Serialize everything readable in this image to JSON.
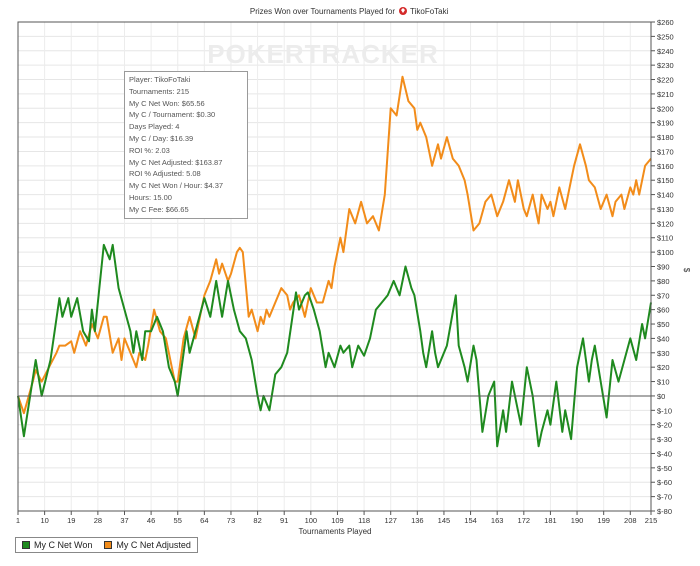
{
  "watermark": "POKERTRACKER",
  "chart_data": {
    "type": "line",
    "title_prefix": "Prizes Won over Tournaments Played for",
    "title_player": "TikoFoTaki",
    "xlabel": "Tournaments Played",
    "ylabel": "$",
    "xlim": [
      1,
      215
    ],
    "ylim": [
      -80,
      260
    ],
    "x_ticks": [
      1,
      10,
      19,
      28,
      37,
      46,
      55,
      64,
      73,
      82,
      91,
      100,
      109,
      118,
      127,
      136,
      145,
      154,
      163,
      172,
      181,
      190,
      199,
      208,
      215
    ],
    "y_ticks": [
      260,
      250,
      240,
      230,
      220,
      210,
      200,
      190,
      180,
      170,
      160,
      150,
      140,
      130,
      120,
      110,
      100,
      90,
      80,
      70,
      60,
      50,
      40,
      30,
      20,
      10,
      0,
      -10,
      -20,
      -30,
      -40,
      -50,
      -60,
      -70,
      -80
    ],
    "y_tick_labels": [
      "$260",
      "$250",
      "$240",
      "$230",
      "$220",
      "$210",
      "$200",
      "$190",
      "$180",
      "$170",
      "$160",
      "$150",
      "$140",
      "$130",
      "$120",
      "$110",
      "$100",
      "$90",
      "$80",
      "$70",
      "$60",
      "$50",
      "$40",
      "$30",
      "$20",
      "$10",
      "$0",
      "$-10",
      "$-20",
      "$-30",
      "$-40",
      "$-50",
      "$-60",
      "$-70",
      "$-80"
    ],
    "series": [
      {
        "name": "My C Net Won",
        "color": "#1f8a1f",
        "points": [
          [
            1,
            0
          ],
          [
            3,
            -28
          ],
          [
            7,
            25
          ],
          [
            9,
            0
          ],
          [
            12,
            25
          ],
          [
            15,
            68
          ],
          [
            16,
            55
          ],
          [
            18,
            68
          ],
          [
            19,
            55
          ],
          [
            21,
            68
          ],
          [
            23,
            45
          ],
          [
            25,
            38
          ],
          [
            26,
            60
          ],
          [
            27,
            45
          ],
          [
            30,
            105
          ],
          [
            32,
            95
          ],
          [
            33,
            105
          ],
          [
            35,
            75
          ],
          [
            37,
            60
          ],
          [
            39,
            45
          ],
          [
            40,
            30
          ],
          [
            41,
            45
          ],
          [
            43,
            25
          ],
          [
            44,
            45
          ],
          [
            46,
            45
          ],
          [
            48,
            55
          ],
          [
            50,
            45
          ],
          [
            52,
            20
          ],
          [
            54,
            10
          ],
          [
            55,
            0
          ],
          [
            58,
            45
          ],
          [
            59,
            30
          ],
          [
            61,
            45
          ],
          [
            64,
            68
          ],
          [
            66,
            55
          ],
          [
            68,
            80
          ],
          [
            70,
            55
          ],
          [
            72,
            80
          ],
          [
            74,
            60
          ],
          [
            76,
            45
          ],
          [
            78,
            40
          ],
          [
            80,
            25
          ],
          [
            82,
            0
          ],
          [
            83,
            -10
          ],
          [
            84,
            0
          ],
          [
            86,
            -10
          ],
          [
            88,
            15
          ],
          [
            90,
            20
          ],
          [
            92,
            30
          ],
          [
            95,
            72
          ],
          [
            96,
            60
          ],
          [
            98,
            70
          ],
          [
            99,
            72
          ],
          [
            101,
            60
          ],
          [
            103,
            45
          ],
          [
            105,
            20
          ],
          [
            106,
            30
          ],
          [
            108,
            20
          ],
          [
            110,
            35
          ],
          [
            111,
            30
          ],
          [
            113,
            35
          ],
          [
            114,
            20
          ],
          [
            116,
            35
          ],
          [
            118,
            28
          ],
          [
            120,
            40
          ],
          [
            122,
            60
          ],
          [
            124,
            65
          ],
          [
            126,
            70
          ],
          [
            128,
            80
          ],
          [
            130,
            70
          ],
          [
            132,
            90
          ],
          [
            134,
            75
          ],
          [
            135,
            70
          ],
          [
            137,
            45
          ],
          [
            138,
            30
          ],
          [
            139,
            20
          ],
          [
            141,
            45
          ],
          [
            142,
            30
          ],
          [
            143,
            20
          ],
          [
            146,
            35
          ],
          [
            149,
            70
          ],
          [
            150,
            35
          ],
          [
            152,
            20
          ],
          [
            153,
            10
          ],
          [
            155,
            35
          ],
          [
            156,
            25
          ],
          [
            158,
            -25
          ],
          [
            160,
            0
          ],
          [
            162,
            10
          ],
          [
            163,
            -35
          ],
          [
            165,
            -10
          ],
          [
            166,
            -25
          ],
          [
            168,
            10
          ],
          [
            170,
            -10
          ],
          [
            171,
            -20
          ],
          [
            173,
            20
          ],
          [
            175,
            0
          ],
          [
            177,
            -35
          ],
          [
            178,
            -25
          ],
          [
            180,
            -10
          ],
          [
            181,
            -20
          ],
          [
            183,
            10
          ],
          [
            185,
            -25
          ],
          [
            186,
            -10
          ],
          [
            188,
            -30
          ],
          [
            190,
            20
          ],
          [
            192,
            40
          ],
          [
            194,
            10
          ],
          [
            195,
            25
          ],
          [
            196,
            35
          ],
          [
            198,
            10
          ],
          [
            200,
            -15
          ],
          [
            202,
            25
          ],
          [
            204,
            10
          ],
          [
            206,
            25
          ],
          [
            208,
            40
          ],
          [
            210,
            25
          ],
          [
            212,
            50
          ],
          [
            213,
            40
          ],
          [
            215,
            65
          ]
        ]
      },
      {
        "name": "My C Net Adjusted",
        "color": "#f28c1a",
        "points": [
          [
            1,
            0
          ],
          [
            3,
            -12
          ],
          [
            6,
            10
          ],
          [
            7,
            18
          ],
          [
            9,
            10
          ],
          [
            12,
            22
          ],
          [
            14,
            30
          ],
          [
            15,
            35
          ],
          [
            17,
            35
          ],
          [
            19,
            38
          ],
          [
            20,
            30
          ],
          [
            22,
            45
          ],
          [
            24,
            35
          ],
          [
            26,
            50
          ],
          [
            28,
            40
          ],
          [
            30,
            55
          ],
          [
            31,
            55
          ],
          [
            33,
            30
          ],
          [
            35,
            40
          ],
          [
            36,
            25
          ],
          [
            37,
            40
          ],
          [
            39,
            30
          ],
          [
            41,
            20
          ],
          [
            42,
            30
          ],
          [
            44,
            25
          ],
          [
            45,
            35
          ],
          [
            47,
            60
          ],
          [
            49,
            45
          ],
          [
            51,
            40
          ],
          [
            53,
            20
          ],
          [
            54,
            10
          ],
          [
            55,
            10
          ],
          [
            57,
            40
          ],
          [
            59,
            55
          ],
          [
            61,
            40
          ],
          [
            63,
            60
          ],
          [
            64,
            70
          ],
          [
            66,
            80
          ],
          [
            68,
            95
          ],
          [
            69,
            85
          ],
          [
            70,
            92
          ],
          [
            72,
            80
          ],
          [
            73,
            85
          ],
          [
            75,
            100
          ],
          [
            76,
            103
          ],
          [
            77,
            100
          ],
          [
            79,
            55
          ],
          [
            80,
            60
          ],
          [
            82,
            45
          ],
          [
            83,
            55
          ],
          [
            84,
            50
          ],
          [
            85,
            60
          ],
          [
            86,
            55
          ],
          [
            88,
            65
          ],
          [
            90,
            75
          ],
          [
            92,
            70
          ],
          [
            93,
            60
          ],
          [
            94,
            65
          ],
          [
            96,
            70
          ],
          [
            98,
            55
          ],
          [
            100,
            75
          ],
          [
            102,
            65
          ],
          [
            104,
            65
          ],
          [
            106,
            80
          ],
          [
            107,
            75
          ],
          [
            108,
            90
          ],
          [
            110,
            110
          ],
          [
            111,
            100
          ],
          [
            113,
            130
          ],
          [
            115,
            120
          ],
          [
            117,
            135
          ],
          [
            119,
            120
          ],
          [
            121,
            125
          ],
          [
            123,
            115
          ],
          [
            125,
            140
          ],
          [
            127,
            200
          ],
          [
            129,
            195
          ],
          [
            131,
            222
          ],
          [
            133,
            205
          ],
          [
            135,
            200
          ],
          [
            136,
            185
          ],
          [
            137,
            190
          ],
          [
            139,
            180
          ],
          [
            141,
            160
          ],
          [
            143,
            175
          ],
          [
            144,
            165
          ],
          [
            146,
            180
          ],
          [
            148,
            165
          ],
          [
            150,
            160
          ],
          [
            152,
            150
          ],
          [
            153,
            140
          ],
          [
            155,
            115
          ],
          [
            157,
            120
          ],
          [
            159,
            135
          ],
          [
            161,
            140
          ],
          [
            163,
            125
          ],
          [
            165,
            135
          ],
          [
            167,
            150
          ],
          [
            169,
            135
          ],
          [
            170,
            150
          ],
          [
            172,
            130
          ],
          [
            173,
            125
          ],
          [
            175,
            140
          ],
          [
            176,
            130
          ],
          [
            177,
            120
          ],
          [
            178,
            140
          ],
          [
            180,
            130
          ],
          [
            181,
            135
          ],
          [
            182,
            125
          ],
          [
            184,
            145
          ],
          [
            186,
            130
          ],
          [
            188,
            150
          ],
          [
            189,
            160
          ],
          [
            191,
            175
          ],
          [
            193,
            160
          ],
          [
            194,
            150
          ],
          [
            196,
            145
          ],
          [
            198,
            130
          ],
          [
            200,
            140
          ],
          [
            202,
            125
          ],
          [
            203,
            135
          ],
          [
            205,
            140
          ],
          [
            206,
            130
          ],
          [
            208,
            145
          ],
          [
            209,
            140
          ],
          [
            210,
            150
          ],
          [
            211,
            140
          ],
          [
            213,
            160
          ],
          [
            215,
            165
          ]
        ]
      }
    ]
  },
  "infobox": {
    "lines": [
      "Player: TikoFoTaki",
      "Tournaments: 215",
      "My C Net Won: $65.56",
      "My C / Tournament: $0.30",
      "Days Played: 4",
      "My C / Day: $16.39",
      "ROI %: 2.03",
      "My C Net Adjusted: $163.87",
      "ROI % Adjusted: 5.08",
      "My C Net Won / Hour: $4.37",
      "Hours: 15.00",
      "My C Fee: $66.65"
    ]
  },
  "legend": {
    "items": [
      {
        "label": "My C Net Won",
        "color": "#1f8a1f"
      },
      {
        "label": "My C Net Adjusted",
        "color": "#f28c1a"
      }
    ]
  }
}
